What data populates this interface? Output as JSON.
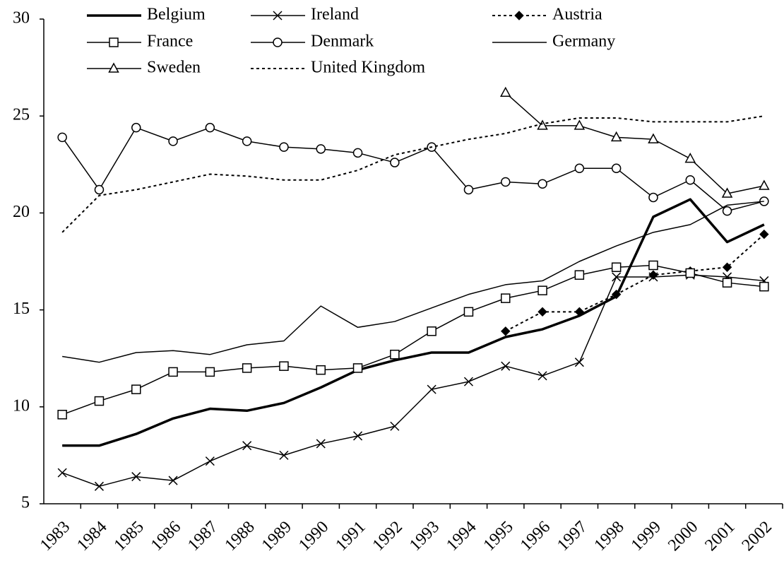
{
  "chart_data": {
    "type": "line",
    "categories": [
      "1983",
      "1984",
      "1985",
      "1986",
      "1987",
      "1988",
      "1989",
      "1990",
      "1991",
      "1992",
      "1993",
      "1994",
      "1995",
      "1996",
      "1997",
      "1998",
      "1999",
      "2000",
      "2001",
      "2002"
    ],
    "ylim": [
      5,
      30
    ],
    "yticks": [
      5,
      10,
      15,
      20,
      25,
      30
    ],
    "grid": false,
    "legend": "top",
    "series": [
      {
        "name": "Belgium",
        "color": "#000000",
        "line_style": "solid-thick",
        "marker": "none",
        "values": [
          8.0,
          8.0,
          8.6,
          9.4,
          9.9,
          9.8,
          10.2,
          11.0,
          11.9,
          12.4,
          12.8,
          12.8,
          13.6,
          14.0,
          14.7,
          15.7,
          19.8,
          20.7,
          18.5,
          19.4
        ]
      },
      {
        "name": "Ireland",
        "color": "#000000",
        "line_style": "solid",
        "marker": "cross",
        "values": [
          6.6,
          5.9,
          6.4,
          6.2,
          7.2,
          8.0,
          7.5,
          8.1,
          8.5,
          9.0,
          10.9,
          11.3,
          12.1,
          11.6,
          12.3,
          16.7,
          16.7,
          16.8,
          16.7,
          16.5
        ]
      },
      {
        "name": "Austria",
        "color": "#000000",
        "line_style": "dotted",
        "marker": "diamond",
        "values": [
          null,
          null,
          null,
          null,
          null,
          null,
          null,
          null,
          null,
          null,
          null,
          null,
          13.9,
          14.9,
          14.9,
          15.8,
          16.8,
          17.0,
          17.2,
          18.9
        ]
      },
      {
        "name": "France",
        "color": "#000000",
        "line_style": "solid",
        "marker": "square",
        "values": [
          9.6,
          10.3,
          10.9,
          11.8,
          11.8,
          12.0,
          12.1,
          11.9,
          12.0,
          12.7,
          13.9,
          14.9,
          15.6,
          16.0,
          16.8,
          17.2,
          17.3,
          16.9,
          16.4,
          16.2
        ]
      },
      {
        "name": "Denmark",
        "color": "#000000",
        "line_style": "solid",
        "marker": "circle",
        "values": [
          23.9,
          21.2,
          24.4,
          23.7,
          24.4,
          23.7,
          23.4,
          23.3,
          23.1,
          22.6,
          23.4,
          21.2,
          21.6,
          21.5,
          22.3,
          22.3,
          20.8,
          21.7,
          20.1,
          20.6
        ]
      },
      {
        "name": "Germany",
        "color": "#000000",
        "line_style": "solid",
        "marker": "none",
        "values": [
          12.6,
          12.3,
          12.8,
          12.9,
          12.7,
          13.2,
          13.4,
          15.2,
          14.1,
          14.4,
          15.1,
          15.8,
          16.3,
          16.5,
          17.5,
          18.3,
          19.0,
          19.4,
          20.4,
          20.6
        ]
      },
      {
        "name": "Sweden",
        "color": "#000000",
        "line_style": "solid",
        "marker": "triangle",
        "values": [
          null,
          null,
          null,
          null,
          null,
          null,
          null,
          null,
          null,
          null,
          null,
          null,
          26.2,
          24.5,
          24.5,
          23.9,
          23.8,
          22.8,
          21.0,
          21.4
        ]
      },
      {
        "name": "United Kingdom",
        "color": "#000000",
        "line_style": "dotted",
        "marker": "none",
        "values": [
          19.0,
          20.9,
          21.2,
          21.6,
          22.0,
          21.9,
          21.7,
          21.7,
          22.2,
          23.0,
          23.4,
          23.8,
          24.1,
          24.6,
          24.9,
          24.9,
          24.7,
          24.7,
          24.7,
          25.0
        ]
      }
    ]
  }
}
